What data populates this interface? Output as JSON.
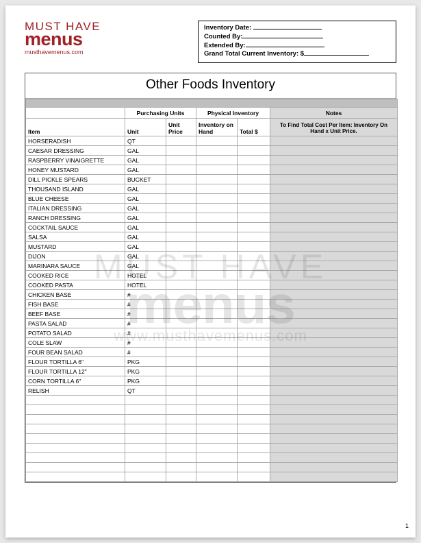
{
  "logo": {
    "top": "MUST HAVE",
    "mid": "menus",
    "url": "musthavemenus.com"
  },
  "meta": {
    "inventory_date_label": "Inventory Date:",
    "counted_by_label": "Counted By:",
    "extended_by_label": "Extended By:",
    "grand_total_label": "Grand Total Current Inventory: $"
  },
  "title": "Other Foods Inventory",
  "group_headers": {
    "purchasing": "Purchasing Units",
    "physical": "Physical Inventory",
    "notes": "Notes"
  },
  "col_headers": {
    "item": "Item",
    "unit": "Unit",
    "unit_price": "Unit Price",
    "inv_on_hand": "Inventory on Hand",
    "total": "Total $",
    "notes": "To Find Total Cost Per Item: Inventory On Hand x Unit Price."
  },
  "rows": [
    {
      "item": "HORSERADISH",
      "unit": "QT"
    },
    {
      "item": "CAESAR DRESSING",
      "unit": "GAL"
    },
    {
      "item": "RASPBERRY VINAIGRETTE",
      "unit": "GAL"
    },
    {
      "item": "HONEY MUSTARD",
      "unit": "GAL"
    },
    {
      "item": "DILL PICKLE SPEARS",
      "unit": "BUCKET"
    },
    {
      "item": "THOUSAND ISLAND",
      "unit": "GAL"
    },
    {
      "item": "BLUE CHEESE",
      "unit": "GAL"
    },
    {
      "item": "ITALIAN DRESSING",
      "unit": "GAL"
    },
    {
      "item": "RANCH DRESSING",
      "unit": "GAL"
    },
    {
      "item": "COCKTAIL SAUCE",
      "unit": "GAL"
    },
    {
      "item": "SALSA",
      "unit": "GAL"
    },
    {
      "item": "MUSTARD",
      "unit": "GAL"
    },
    {
      "item": "DIJON",
      "unit": "GAL"
    },
    {
      "item": "MARINARA SAUCE",
      "unit": "GAL"
    },
    {
      "item": "COOKED RICE",
      "unit": "HOTEL"
    },
    {
      "item": "COOKED PASTA",
      "unit": "HOTEL"
    },
    {
      "item": "CHICKEN BASE",
      "unit": "#"
    },
    {
      "item": "FISH BASE",
      "unit": "#"
    },
    {
      "item": "BEEF BASE",
      "unit": "#"
    },
    {
      "item": "PASTA SALAD",
      "unit": "#"
    },
    {
      "item": "POTATO  SALAD",
      "unit": "#"
    },
    {
      "item": "COLE SLAW",
      "unit": "#"
    },
    {
      "item": "FOUR BEAN SALAD",
      "unit": "#"
    },
    {
      "item": "FLOUR TORTILLA 6\"",
      "unit": "PKG"
    },
    {
      "item": "FLOUR TORTILLA 12\"",
      "unit": "PKG"
    },
    {
      "item": "CORN TORTILLA 6\"",
      "unit": "PKG"
    },
    {
      "item": "RELISH",
      "unit": "QT"
    }
  ],
  "empty_row_count": 9,
  "page_number": "1",
  "watermark": {
    "top": "MUST HAVE",
    "mid": "menus",
    "url": "www.musthavemenus.com"
  }
}
